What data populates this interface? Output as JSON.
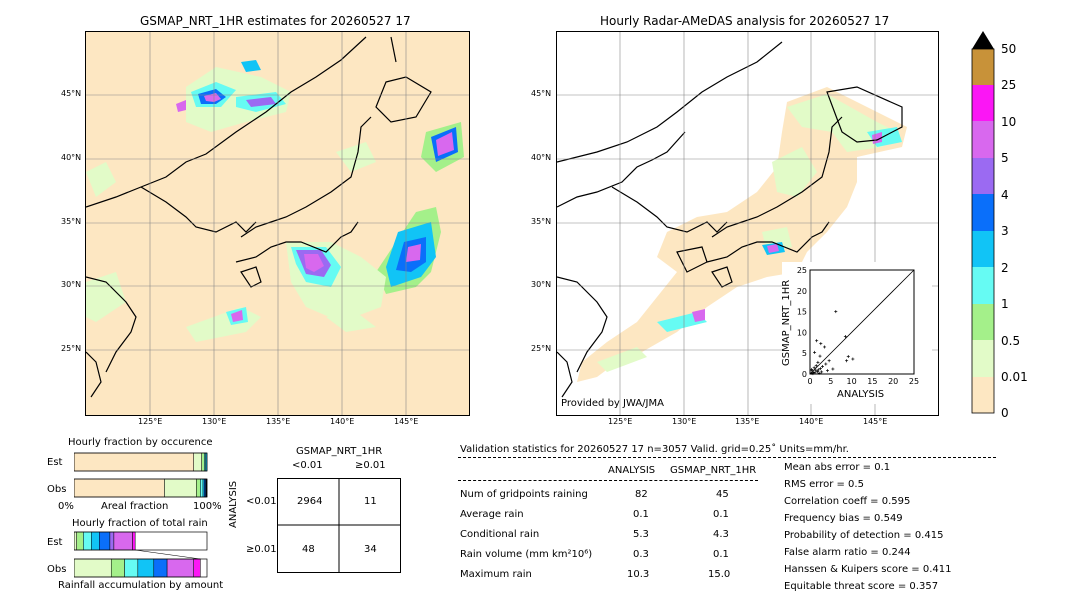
{
  "left_map": {
    "title": "GSMAP_NRT_1HR estimates for 20260527 17",
    "lat_ticks": [
      "45°N",
      "40°N",
      "35°N",
      "30°N",
      "25°N"
    ],
    "lon_ticks": [
      "125°E",
      "130°E",
      "135°E",
      "140°E",
      "145°E"
    ]
  },
  "right_map": {
    "title": "Hourly Radar-AMeDAS analysis for 20260527 17",
    "lat_ticks": [
      "45°N",
      "40°N",
      "35°N",
      "30°N",
      "25°N"
    ],
    "lon_ticks": [
      "125°E",
      "130°E",
      "135°E",
      "140°E",
      "145°E"
    ],
    "credit": "Provided by JWA/JMA"
  },
  "colors": {
    "ocean": "#fde7c2",
    "land": "#fde7c2",
    "no_data": "#ffffff",
    "lt_0_01": "#fde7c2",
    "c0_01": "#e2fbc8",
    "c0_5": "#a4f08a",
    "c1": "#66fbf3",
    "c2": "#11c4f6",
    "c3": "#0a6ffa",
    "c4": "#9b6af2",
    "c5": "#d868ee",
    "c10": "#fb16f5",
    "c25": "#c89239",
    "c50": "#000000"
  },
  "colorbar": {
    "labels": [
      "50",
      "25",
      "10",
      "5",
      "4",
      "3",
      "2",
      "1",
      "0.5",
      "0.01",
      "0"
    ]
  },
  "scatter": {
    "xlabel": "ANALYSIS",
    "ylabel": "GSMAP_NRT_1HR",
    "ticks": [
      "0",
      "5",
      "10",
      "15",
      "20",
      "25"
    ]
  },
  "chart_data": [
    {
      "type": "scatter",
      "xlabel": "ANALYSIS",
      "ylabel": "GSMAP_NRT_1HR",
      "xlim": [
        0,
        25
      ],
      "ylim": [
        0,
        25
      ],
      "points": [
        {
          "x": 0.3,
          "y": 0.2
        },
        {
          "x": 0.5,
          "y": 0.8
        },
        {
          "x": 0.8,
          "y": 0.4
        },
        {
          "x": 1.0,
          "y": 1.5
        },
        {
          "x": 1.2,
          "y": 0.3
        },
        {
          "x": 1.5,
          "y": 2.0
        },
        {
          "x": 1.8,
          "y": 0.6
        },
        {
          "x": 2.0,
          "y": 1.0
        },
        {
          "x": 2.2,
          "y": 0.2
        },
        {
          "x": 2.5,
          "y": 1.3
        },
        {
          "x": 0.7,
          "y": 0.1
        },
        {
          "x": 1.4,
          "y": 0.9
        },
        {
          "x": 2.8,
          "y": 0.5
        },
        {
          "x": 3.0,
          "y": 1.8
        },
        {
          "x": 0.4,
          "y": 1.1
        },
        {
          "x": 1.1,
          "y": 5.2
        },
        {
          "x": 1.6,
          "y": 8.0
        },
        {
          "x": 2.6,
          "y": 7.3
        },
        {
          "x": 3.5,
          "y": 6.5
        },
        {
          "x": 2.4,
          "y": 4.3
        },
        {
          "x": 3.8,
          "y": 2.4
        },
        {
          "x": 4.2,
          "y": 0.8
        },
        {
          "x": 5.5,
          "y": 1.2
        },
        {
          "x": 4.6,
          "y": 3.2
        },
        {
          "x": 6.2,
          "y": 15.0
        },
        {
          "x": 8.5,
          "y": 9.0
        },
        {
          "x": 9.2,
          "y": 4.2
        },
        {
          "x": 10.3,
          "y": 3.6
        },
        {
          "x": 8.8,
          "y": 3.2
        },
        {
          "x": 1.9,
          "y": 2.8
        }
      ]
    },
    {
      "type": "bar",
      "title": "Hourly fraction by occurence",
      "xlabel": "Areal fraction",
      "categories": [
        "Est",
        "Obs"
      ],
      "series": [
        {
          "values": [
            0.9,
            0.68
          ],
          "color": "#fde7c2"
        },
        {
          "values": [
            0.06,
            0.24
          ],
          "color": "#e2fbc8"
        },
        {
          "values": [
            0.02,
            0.03
          ],
          "color": "#a4f08a"
        },
        {
          "values": [
            0.01,
            0.02
          ],
          "color": "#66fbf3"
        },
        {
          "values": [
            0.01,
            0.01
          ],
          "color": "#11c4f6"
        },
        {
          "values": [
            0.0,
            0.01
          ],
          "color": "#0a6ffa"
        },
        {
          "values": [
            0.0,
            0.01
          ],
          "color": "#000000"
        }
      ]
    },
    {
      "type": "bar",
      "title": "Hourly fraction of total rain",
      "xlabel": "Rainfall accumulation by amount",
      "categories": [
        "Est",
        "Obs"
      ],
      "series": [
        {
          "values": [
            0.02,
            0.28
          ],
          "color": "#e2fbc8"
        },
        {
          "values": [
            0.05,
            0.1
          ],
          "color": "#a4f08a"
        },
        {
          "values": [
            0.06,
            0.1
          ],
          "color": "#66fbf3"
        },
        {
          "values": [
            0.06,
            0.12
          ],
          "color": "#11c4f6"
        },
        {
          "values": [
            0.08,
            0.1
          ],
          "color": "#0a6ffa"
        },
        {
          "values": [
            0.03,
            0.0
          ],
          "color": "#9b6af2"
        },
        {
          "values": [
            0.14,
            0.2
          ],
          "color": "#d868ee"
        },
        {
          "values": [
            0.02,
            0.05
          ],
          "color": "#fb16f5"
        }
      ]
    },
    {
      "type": "table",
      "title": "GSMAP_NRT_1HR",
      "col_headers": [
        "<0.01",
        "≥0.01"
      ],
      "row_headers": [
        "<0.01",
        "≥0.01"
      ],
      "row_title": "ANALYSIS",
      "cells": [
        [
          "2964",
          "11"
        ],
        [
          "48",
          "34"
        ]
      ]
    }
  ],
  "fraction_charts": {
    "occurrence_title": "Hourly fraction by occurence",
    "occurrence_xlabel": "Areal fraction",
    "pct0": "0%",
    "pct100": "100%",
    "rain_title": "Hourly fraction of total rain",
    "rain_xlabel": "Rainfall accumulation by amount",
    "est": "Est",
    "obs": "Obs"
  },
  "contingency": {
    "title": "GSMAP_NRT_1HR",
    "col1": "<0.01",
    "col2": "≥0.01",
    "row_title": "ANALYSIS",
    "row1": "<0.01",
    "row2": "≥0.01",
    "c11": "2964",
    "c12": "11",
    "c21": "48",
    "c22": "34"
  },
  "validation": {
    "header": "Validation statistics for 20260527 17  n=3057 Valid. grid=0.25˚ Units=mm/hr.",
    "col_analysis": "ANALYSIS",
    "col_gsmap": "GSMAP_NRT_1HR",
    "rows": [
      {
        "label": "Num of gridpoints raining",
        "a": "82",
        "g": "45"
      },
      {
        "label": "Average rain",
        "a": "0.1",
        "g": "0.1"
      },
      {
        "label": "Conditional rain",
        "a": "5.3",
        "g": "4.3"
      },
      {
        "label": "Rain volume (mm km²10⁶)",
        "a": "0.3",
        "g": "0.1"
      },
      {
        "label": "Maximum rain",
        "a": "10.3",
        "g": "15.0"
      }
    ],
    "scores": [
      "Mean abs error =    0.1",
      "RMS error =    0.5",
      "Correlation coeff =  0.595",
      "Frequency bias =  0.549",
      "Probability of detection =  0.415",
      "False alarm ratio =  0.244",
      "Hanssen & Kuipers score =  0.411",
      "Equitable threat score =  0.357"
    ]
  }
}
